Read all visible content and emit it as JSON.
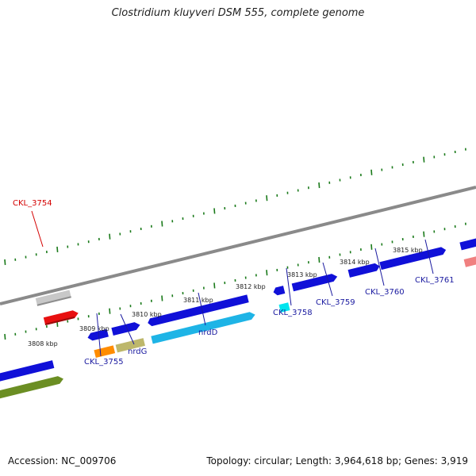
{
  "title": "Clostridium kluyveri DSM 555, complete genome",
  "footer": {
    "accession": "Accession: NC_009706",
    "summary": "Topology: circular; Length: 3,964,618 bp; Genes: 3,919"
  },
  "colors": {
    "backbone": "#8a8a8a",
    "tick": "#1a7a1a",
    "label_blue": "#1a1aa0",
    "label_red": "#d40000"
  },
  "kbp_labels": [
    "3808 kbp",
    "3809 kbp",
    "3810 kbp",
    "3811 kbp",
    "3812 kbp",
    "3813 kbp",
    "3814 kbp",
    "3815 kbp"
  ],
  "gene_labels": [
    "CKL_3754",
    "CKL_3755",
    "nrdG",
    "nrdD",
    "CKL_3758",
    "CKL_3759",
    "CKL_3760",
    "CKL_3761"
  ],
  "features": [
    {
      "name": "CKL_3754",
      "color": "#c8c8c8"
    },
    {
      "name": "red-feature",
      "color": "#e81010"
    },
    {
      "name": "left-blue-gene",
      "color": "#1010d8"
    },
    {
      "name": "olive-feature",
      "color": "#6b8e23"
    },
    {
      "name": "CKL_3755",
      "color": "#1010d8"
    },
    {
      "name": "nrdG",
      "color": "#1010d8"
    },
    {
      "name": "orange-feature",
      "color": "#ff8c00"
    },
    {
      "name": "khaki-feature",
      "color": "#bdb76b"
    },
    {
      "name": "nrdD",
      "color": "#1010d8"
    },
    {
      "name": "sky-feature",
      "color": "#1eb4e6"
    },
    {
      "name": "CKL_3758",
      "color": "#1010d8"
    },
    {
      "name": "cyan-feature",
      "color": "#00e5ee"
    },
    {
      "name": "CKL_3759",
      "color": "#1010d8"
    },
    {
      "name": "CKL_3760",
      "color": "#1010d8"
    },
    {
      "name": "CKL_3761",
      "color": "#1010d8"
    },
    {
      "name": "right-blue-gene",
      "color": "#1010d8"
    },
    {
      "name": "pink-feature",
      "color": "#f08080"
    }
  ]
}
